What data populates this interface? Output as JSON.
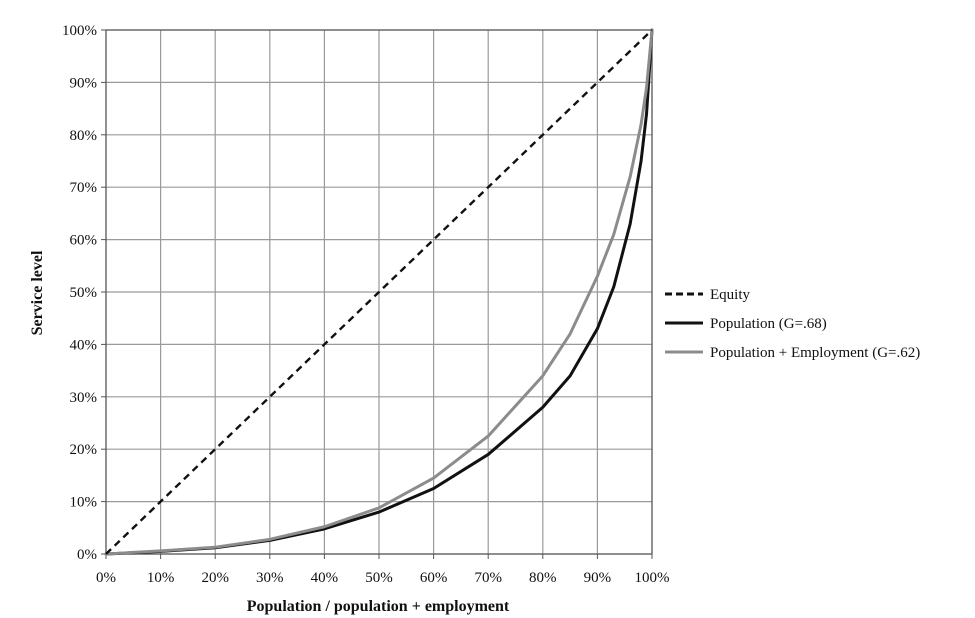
{
  "chart_data": {
    "type": "line",
    "title": "",
    "xlabel": "Population / population + employment",
    "ylabel": "Service level",
    "xlim": [
      0,
      100
    ],
    "ylim": [
      0,
      100
    ],
    "x_ticks": [
      "0%",
      "10%",
      "20%",
      "30%",
      "40%",
      "50%",
      "60%",
      "70%",
      "80%",
      "90%",
      "100%"
    ],
    "y_ticks": [
      "0%",
      "10%",
      "20%",
      "30%",
      "40%",
      "50%",
      "60%",
      "70%",
      "80%",
      "90%",
      "100%"
    ],
    "grid": true,
    "legend_position": "right",
    "series": [
      {
        "name": "Equity",
        "color": "#111111",
        "style": "dashed",
        "points": [
          [
            0,
            0
          ],
          [
            100,
            100
          ]
        ]
      },
      {
        "name": "Population (G=.68)",
        "color": "#111111",
        "style": "solid",
        "points": [
          [
            0,
            0
          ],
          [
            10,
            0.5
          ],
          [
            20,
            1.2
          ],
          [
            30,
            2.6
          ],
          [
            40,
            4.8
          ],
          [
            50,
            8
          ],
          [
            60,
            12.5
          ],
          [
            70,
            19
          ],
          [
            80,
            28
          ],
          [
            85,
            34
          ],
          [
            90,
            43
          ],
          [
            93,
            51
          ],
          [
            96,
            63
          ],
          [
            98,
            75
          ],
          [
            99,
            84
          ],
          [
            100,
            100
          ]
        ]
      },
      {
        "name": "Population + Employment (G=.62)",
        "color": "#8c8c8c",
        "style": "solid",
        "points": [
          [
            0,
            0
          ],
          [
            10,
            0.6
          ],
          [
            20,
            1.3
          ],
          [
            30,
            2.8
          ],
          [
            40,
            5.2
          ],
          [
            50,
            8.8
          ],
          [
            60,
            14.5
          ],
          [
            70,
            22.5
          ],
          [
            80,
            34
          ],
          [
            85,
            42
          ],
          [
            90,
            53
          ],
          [
            93,
            61
          ],
          [
            96,
            72
          ],
          [
            98,
            82
          ],
          [
            99,
            89
          ],
          [
            100,
            100
          ]
        ]
      }
    ]
  }
}
